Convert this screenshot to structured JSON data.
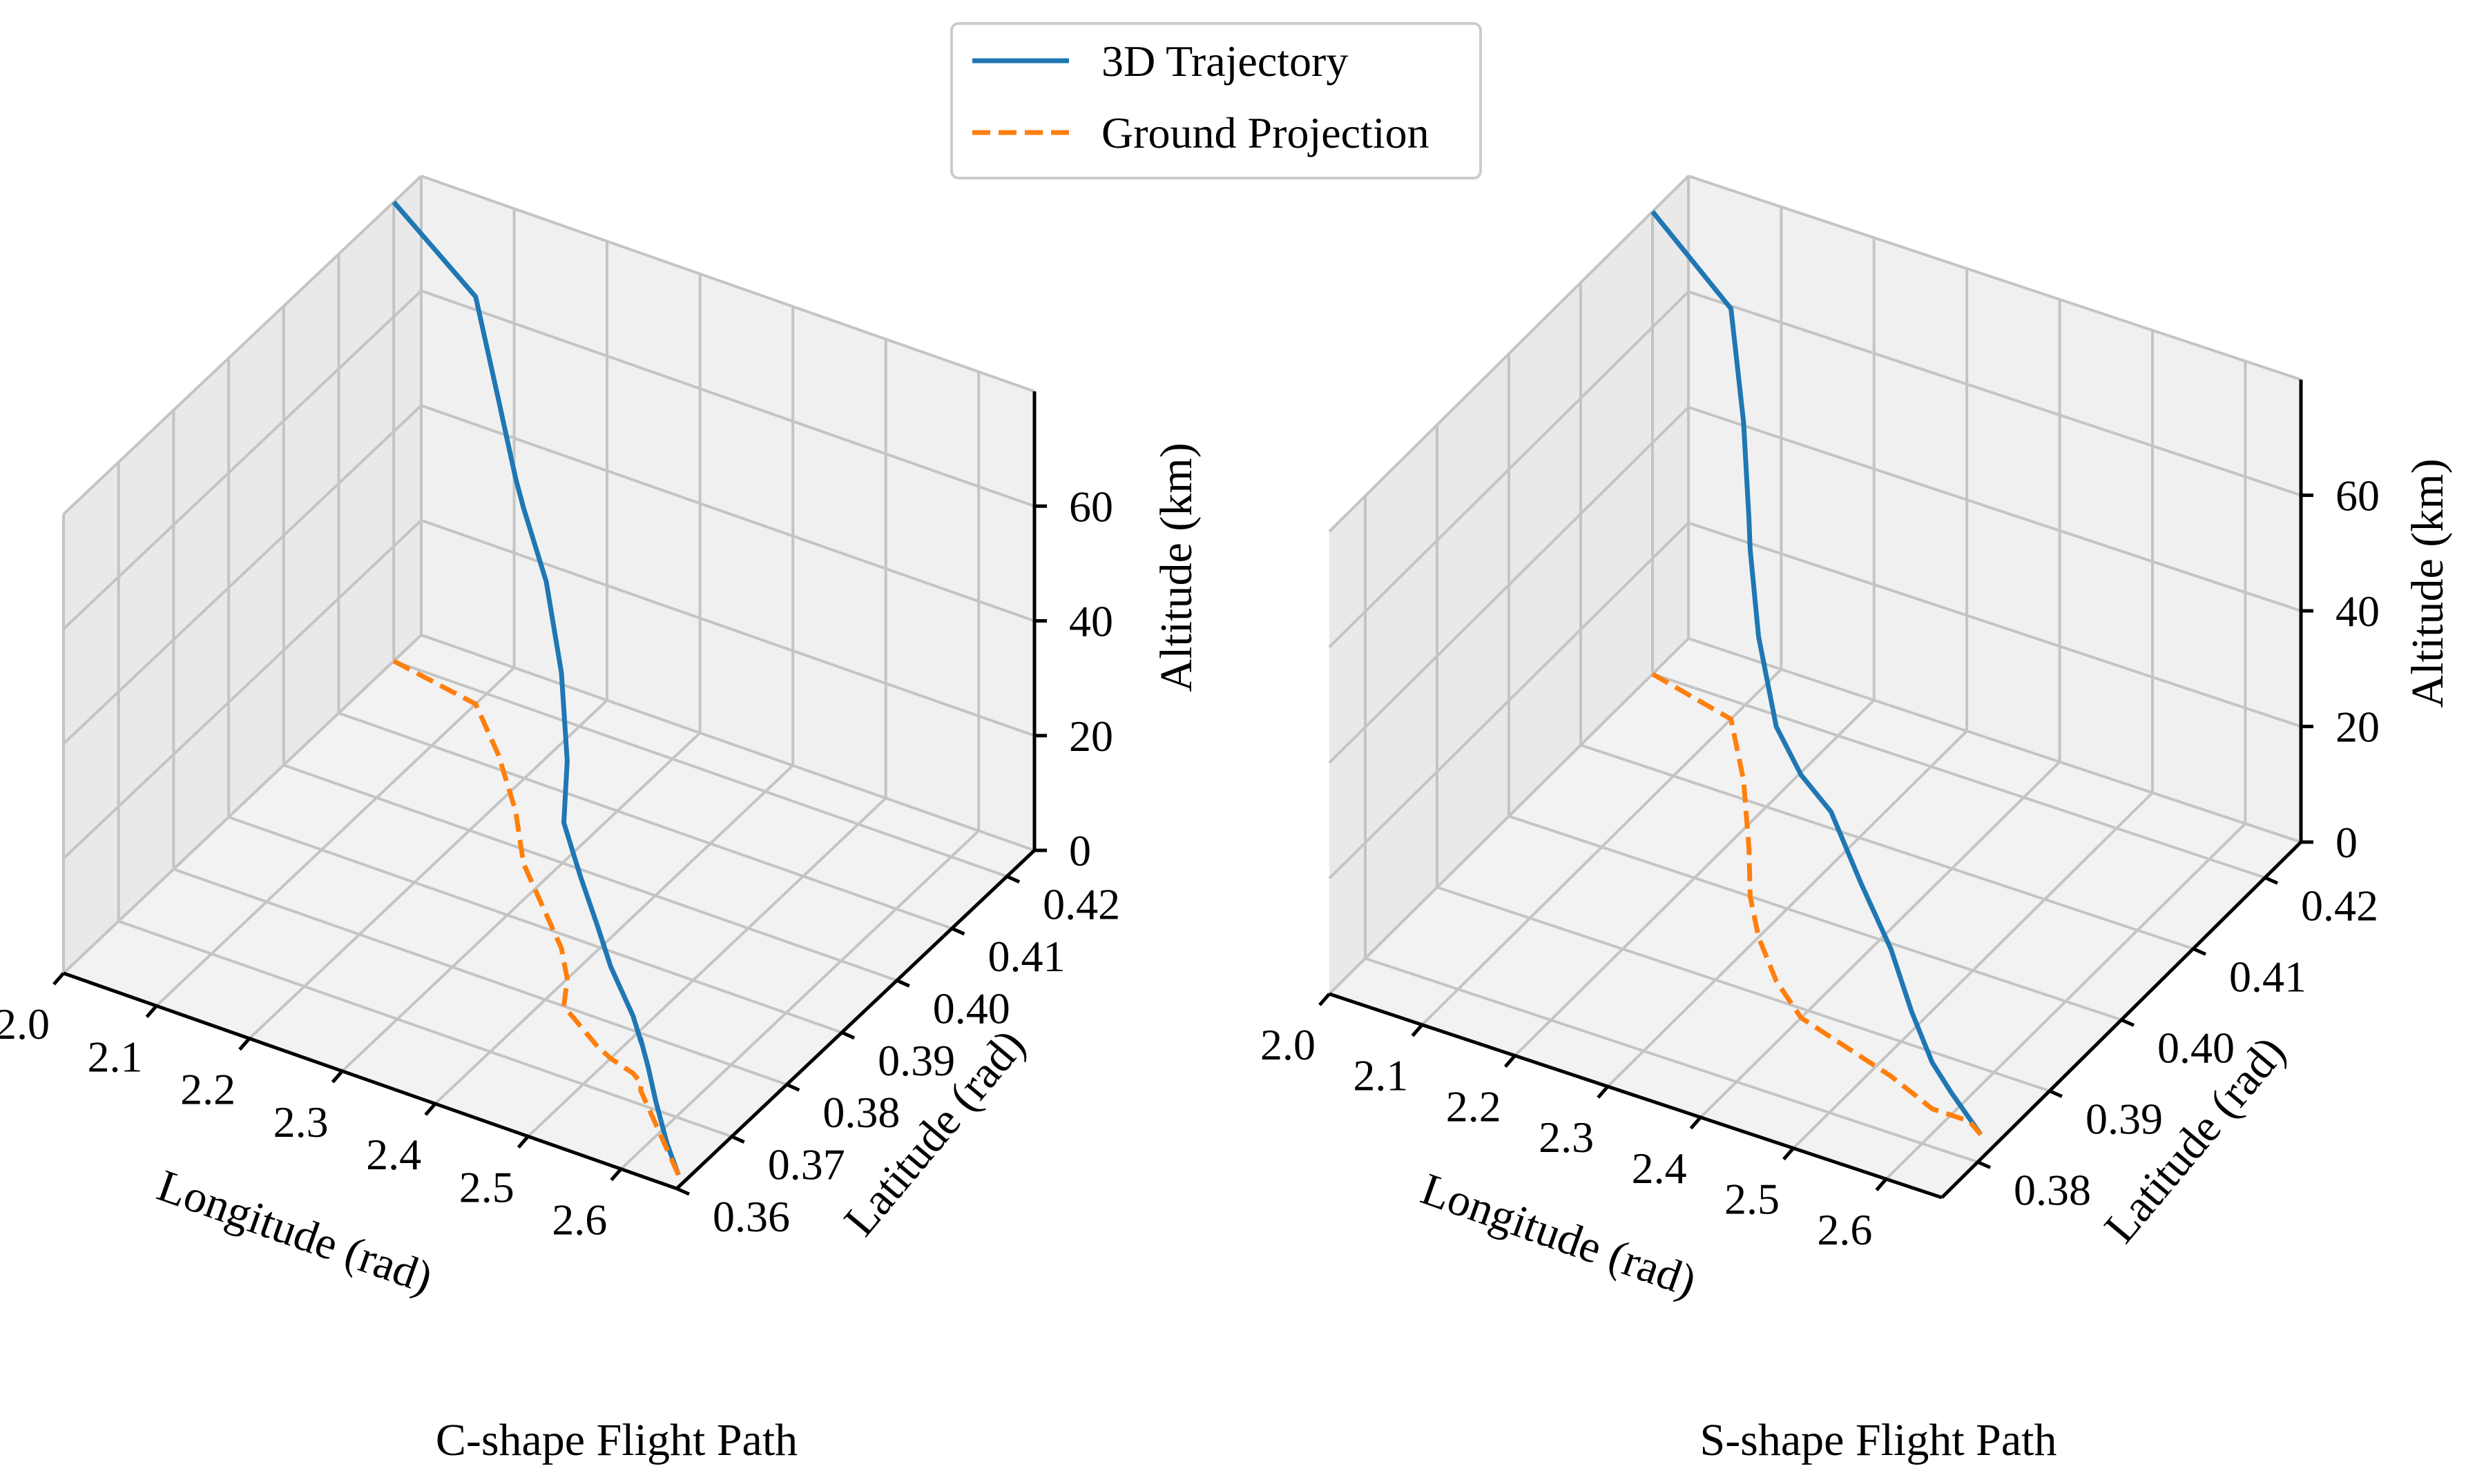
{
  "legend": {
    "entries": [
      {
        "label": "3D Trajectory",
        "color": "#1f77b4",
        "style": "solid"
      },
      {
        "label": "Ground Projection",
        "color": "#ff7f0e",
        "style": "dashed"
      }
    ]
  },
  "chart_data": [
    {
      "type": "line3d",
      "title": "C-shape Flight Path",
      "xlabel": "Longitude (rad)",
      "ylabel": "Latitude (rad)",
      "zlabel": "Altitude (km)",
      "xlim": [
        2.0,
        2.66
      ],
      "ylim": [
        0.36,
        0.425
      ],
      "zlim": [
        0,
        80
      ],
      "xticks": [
        "2.0",
        "2.1",
        "2.2",
        "2.3",
        "2.4",
        "2.5",
        "2.6"
      ],
      "yticks": [
        "0.36",
        "0.37",
        "0.38",
        "0.39",
        "0.40",
        "0.41",
        "0.42"
      ],
      "zticks": [
        "0",
        "20",
        "40",
        "60"
      ],
      "grid": true,
      "series": [
        {
          "name": "3D Trajectory",
          "points": [
            [
              2.0,
              0.42,
              80
            ],
            [
              2.1,
              0.418,
              71
            ],
            [
              2.16,
              0.412,
              62
            ],
            [
              2.22,
              0.405,
              58
            ],
            [
              2.27,
              0.398,
              62
            ],
            [
              2.33,
              0.392,
              58
            ],
            [
              2.37,
              0.388,
              48
            ],
            [
              2.4,
              0.384,
              38
            ],
            [
              2.42,
              0.38,
              32
            ],
            [
              2.45,
              0.378,
              26
            ],
            [
              2.48,
              0.376,
              21
            ],
            [
              2.5,
              0.375,
              16
            ],
            [
              2.53,
              0.374,
              10
            ],
            [
              2.545,
              0.373,
              7
            ],
            [
              2.55,
              0.372,
              9
            ],
            [
              2.57,
              0.37,
              7
            ],
            [
              2.59,
              0.368,
              4
            ],
            [
              2.62,
              0.365,
              1
            ],
            [
              2.65,
              0.362,
              0
            ]
          ]
        },
        {
          "name": "Ground Projection",
          "points": [
            [
              2.0,
              0.42,
              0
            ],
            [
              2.1,
              0.418,
              0
            ],
            [
              2.16,
              0.412,
              0
            ],
            [
              2.22,
              0.405,
              0
            ],
            [
              2.27,
              0.398,
              0
            ],
            [
              2.33,
              0.392,
              0
            ],
            [
              2.37,
              0.388,
              0
            ],
            [
              2.4,
              0.384,
              0
            ],
            [
              2.42,
              0.38,
              0
            ],
            [
              2.45,
              0.378,
              0
            ],
            [
              2.48,
              0.376,
              0
            ],
            [
              2.5,
              0.375,
              0
            ],
            [
              2.53,
              0.374,
              0
            ],
            [
              2.545,
              0.373,
              0
            ],
            [
              2.55,
              0.372,
              0
            ],
            [
              2.57,
              0.37,
              0
            ],
            [
              2.59,
              0.368,
              0
            ],
            [
              2.62,
              0.365,
              0
            ],
            [
              2.65,
              0.362,
              0
            ]
          ]
        }
      ]
    },
    {
      "type": "line3d",
      "title": "S-shape Flight Path",
      "xlabel": "Longitude (rad)",
      "ylabel": "Latitude (rad)",
      "zlabel": "Altitude (km)",
      "xlim": [
        2.0,
        2.66
      ],
      "ylim": [
        0.375,
        0.425
      ],
      "zlim": [
        0,
        80
      ],
      "xticks": [
        "2.0",
        "2.1",
        "2.2",
        "2.3",
        "2.4",
        "2.5",
        "2.6"
      ],
      "yticks": [
        "0.38",
        "0.39",
        "0.40",
        "0.41",
        "0.42"
      ],
      "zticks": [
        "0",
        "20",
        "40",
        "60"
      ],
      "grid": true,
      "series": [
        {
          "name": "3D Trajectory",
          "points": [
            [
              2.0,
              0.42,
              80
            ],
            [
              2.1,
              0.418,
              71
            ],
            [
              2.16,
              0.412,
              62
            ],
            [
              2.22,
              0.405,
              57
            ],
            [
              2.26,
              0.4,
              60
            ],
            [
              2.3,
              0.396,
              52
            ],
            [
              2.35,
              0.392,
              44
            ],
            [
              2.4,
              0.389,
              42
            ],
            [
              2.44,
              0.388,
              39
            ],
            [
              2.48,
              0.387,
              30
            ],
            [
              2.52,
              0.386,
              22
            ],
            [
              2.55,
              0.385,
              14
            ],
            [
              2.58,
              0.384,
              8
            ],
            [
              2.6,
              0.384,
              4
            ],
            [
              2.62,
              0.384,
              0.5
            ],
            [
              2.64,
              0.383,
              0
            ]
          ]
        },
        {
          "name": "Ground Projection",
          "points": [
            [
              2.0,
              0.42,
              0
            ],
            [
              2.1,
              0.418,
              0
            ],
            [
              2.16,
              0.412,
              0
            ],
            [
              2.22,
              0.405,
              0
            ],
            [
              2.26,
              0.4,
              0
            ],
            [
              2.3,
              0.396,
              0
            ],
            [
              2.35,
              0.392,
              0
            ],
            [
              2.4,
              0.389,
              0
            ],
            [
              2.44,
              0.388,
              0
            ],
            [
              2.48,
              0.387,
              0
            ],
            [
              2.52,
              0.386,
              0
            ],
            [
              2.55,
              0.385,
              0
            ],
            [
              2.58,
              0.384,
              0
            ],
            [
              2.6,
              0.384,
              0
            ],
            [
              2.62,
              0.384,
              0
            ],
            [
              2.64,
              0.383,
              0
            ]
          ]
        }
      ]
    }
  ]
}
